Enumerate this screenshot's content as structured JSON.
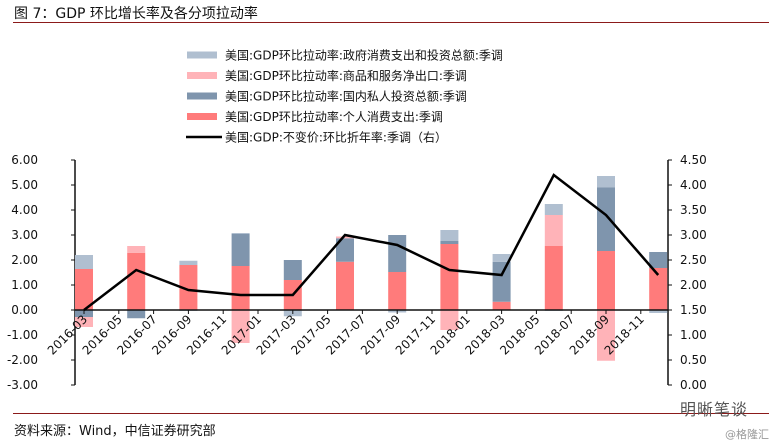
{
  "header": {
    "title": "图 7：GDP 环比增长率及各分项拉动率"
  },
  "footer": {
    "source": "资料来源：Wind，中信证券研究部",
    "watermark": "明晰笔谈",
    "watermark_sub": "@格隆汇"
  },
  "chart_data": {
    "type": "bar",
    "subtype": "stacked bar + line (secondary axis)",
    "x": [
      "2016-03",
      "2016-06",
      "2016-09",
      "2016-12",
      "2017-03",
      "2017-06",
      "2017-09",
      "2017-12",
      "2018-03",
      "2018-06",
      "2018-09",
      "2018-12"
    ],
    "xticks": [
      "2016-03",
      "2016-05",
      "2016-07",
      "2016-09",
      "2016-11",
      "2017-01",
      "2017-03",
      "2017-05",
      "2017-07",
      "2017-09",
      "2017-11",
      "2018-01",
      "2018-03",
      "2018-05",
      "2018-07",
      "2018-09",
      "2018-11"
    ],
    "yticks_left": [
      "6.00",
      "5.00",
      "4.00",
      "3.00",
      "2.00",
      "1.00",
      "0.00",
      "-1.00",
      "-2.00",
      "-3.00"
    ],
    "yticks_right": [
      "4.50",
      "4.00",
      "3.50",
      "3.00",
      "2.50",
      "2.00",
      "1.50",
      "1.00",
      "0.50",
      "0.00"
    ],
    "ylim_left": [
      -3,
      6
    ],
    "ylim_right": [
      0,
      4.5
    ],
    "legend_position": "top",
    "grid": false,
    "series": [
      {
        "name": "美国:GDP环比拉动率:个人消费支出:季调",
        "axis": "left",
        "color": "#ff7b7b",
        "values": [
          1.64,
          2.29,
          1.8,
          1.76,
          1.2,
          1.93,
          1.52,
          2.64,
          0.33,
          2.56,
          2.36,
          1.68
        ]
      },
      {
        "name": "美国:GDP环比拉动率:国内私人投资总额:季调",
        "axis": "left",
        "color": "#7f95ad",
        "values": [
          -0.28,
          -0.33,
          -0.03,
          1.28,
          0.8,
          0.94,
          1.48,
          0.12,
          1.6,
          -0.03,
          2.54,
          0.64
        ]
      },
      {
        "name": "美国:GDP环比拉动率:商品和服务净出口:季调",
        "axis": "left",
        "color": "#ffb3b8",
        "values": [
          -0.4,
          0.27,
          0.0,
          -1.32,
          0.0,
          0.07,
          0.0,
          -0.8,
          0.0,
          1.24,
          -2.03,
          0.0
        ]
      },
      {
        "name": "美国:GDP环比拉动率:政府消费支出和投资总额:季调",
        "axis": "left",
        "color": "#b0bfd0",
        "values": [
          0.56,
          0.0,
          0.17,
          0.04,
          -0.25,
          0.0,
          -0.1,
          0.44,
          0.31,
          0.44,
          0.46,
          -0.12
        ]
      },
      {
        "name": "美国:GDP:不变价:环比折年率:季调（右）",
        "axis": "right",
        "type": "line",
        "color": "#000000",
        "values": [
          1.5,
          2.3,
          1.9,
          1.8,
          1.8,
          3.0,
          2.8,
          2.3,
          2.2,
          4.2,
          3.4,
          2.2
        ]
      }
    ],
    "legend_order": [
      3,
      2,
      1,
      0,
      4
    ]
  }
}
